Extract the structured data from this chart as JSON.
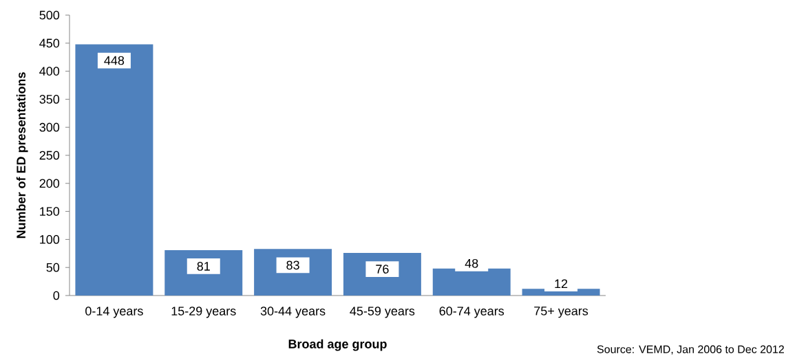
{
  "chart_data": {
    "type": "bar",
    "xlabel": "Broad age group",
    "ylabel": "Number of ED presentations",
    "categories": [
      "0-14 years",
      "15-29 years",
      "30-44 years",
      "45-59 years",
      "60-74 years",
      "75+ years"
    ],
    "values": [
      448,
      81,
      83,
      76,
      48,
      12
    ],
    "color": "#4f81bd",
    "ylim": [
      0,
      500
    ],
    "yticks": [
      0,
      50,
      100,
      150,
      200,
      250,
      300,
      350,
      400,
      450,
      500
    ],
    "data_labels": true,
    "grid": false,
    "annotations": [
      "Source: VEMD, Jan 2006 to Dec 2012"
    ]
  }
}
